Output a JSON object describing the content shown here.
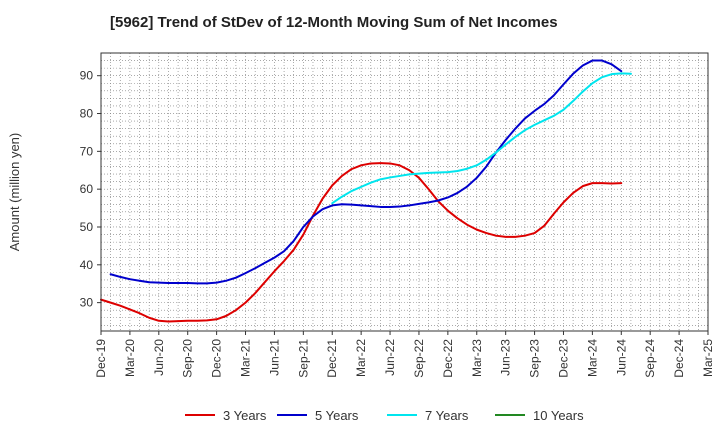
{
  "title": "[5962]  Trend of StDev of 12-Month Moving Sum of Net Incomes",
  "chart_data": {
    "type": "line",
    "title": "[5962]  Trend of StDev of 12-Month Moving Sum of Net Incomes",
    "xlabel": "",
    "ylabel": "Amount (million yen)",
    "x_tick_labels": [
      "Dec-19",
      "Mar-20",
      "Jun-20",
      "Sep-20",
      "Dec-20",
      "Mar-21",
      "Jun-21",
      "Sep-21",
      "Dec-21",
      "Mar-22",
      "Jun-22",
      "Sep-22",
      "Dec-22",
      "Mar-23",
      "Jun-23",
      "Sep-23",
      "Dec-23",
      "Mar-24",
      "Jun-24",
      "Sep-24",
      "Dec-24",
      "Mar-25"
    ],
    "y_ticks": [
      30,
      40,
      50,
      60,
      70,
      80,
      90
    ],
    "ylim": [
      22.5,
      96
    ],
    "grid": true,
    "legend_position": "bottom",
    "series": [
      {
        "name": "3 Years",
        "color": "#dd0000",
        "start_index": 0,
        "values": [
          30.8,
          30.0,
          29.2,
          28.2,
          27.2,
          26.0,
          25.2,
          25.0,
          25.1,
          25.2,
          25.2,
          25.3,
          25.6,
          26.5,
          28.0,
          30.0,
          32.5,
          35.4,
          38.3,
          41.0,
          44.0,
          48.0,
          53.0,
          57.5,
          61.0,
          63.5,
          65.3,
          66.3,
          66.8,
          66.9,
          66.8,
          66.3,
          65.0,
          63.0,
          60.0,
          56.8,
          54.3,
          52.3,
          50.6,
          49.3,
          48.4,
          47.7,
          47.4,
          47.4,
          47.7,
          48.4,
          50.3,
          53.5,
          56.5,
          59.0,
          60.8,
          61.6,
          61.6,
          61.5,
          61.6
        ]
      },
      {
        "name": "5 Years",
        "color": "#0000cc",
        "start_index": 1,
        "values": [
          37.5,
          36.8,
          36.2,
          35.8,
          35.4,
          35.3,
          35.2,
          35.2,
          35.2,
          35.1,
          35.1,
          35.3,
          35.8,
          36.6,
          37.8,
          39.1,
          40.5,
          41.9,
          43.6,
          46.3,
          50.0,
          52.8,
          54.7,
          55.7,
          56.0,
          55.9,
          55.7,
          55.5,
          55.3,
          55.3,
          55.4,
          55.7,
          56.1,
          56.5,
          57.0,
          57.8,
          59.0,
          60.7,
          63.0,
          66.0,
          69.7,
          73.0,
          76.0,
          78.7,
          80.7,
          82.5,
          84.8,
          87.7,
          90.5,
          92.7,
          94.0,
          94.0,
          93.0,
          91.2
        ]
      },
      {
        "name": "7 Years",
        "color": "#00e5ee",
        "start_index": 24,
        "values": [
          56.3,
          58.0,
          59.5,
          60.6,
          61.7,
          62.6,
          63.1,
          63.5,
          63.9,
          64.1,
          64.3,
          64.4,
          64.5,
          64.8,
          65.4,
          66.3,
          67.8,
          69.7,
          71.8,
          73.8,
          75.6,
          77.0,
          78.2,
          79.4,
          81.0,
          83.3,
          85.8,
          88.0,
          89.6,
          90.4,
          90.6,
          90.5
        ]
      },
      {
        "name": "10 Years",
        "color": "#228822",
        "start_index": 0,
        "values": []
      }
    ]
  }
}
